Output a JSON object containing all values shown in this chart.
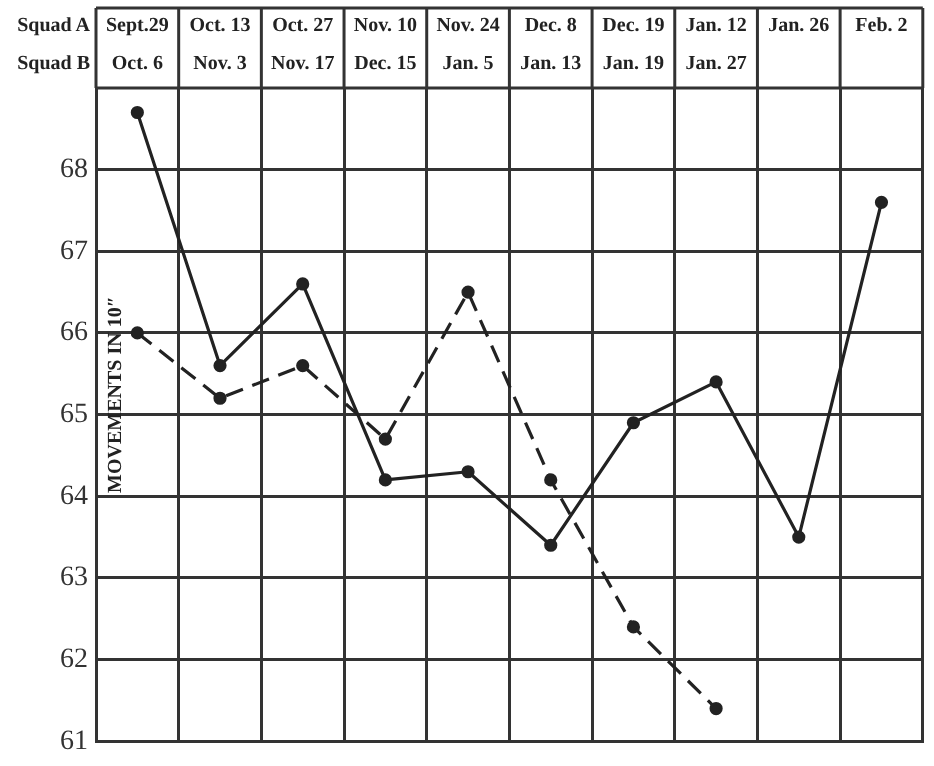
{
  "chart_data": {
    "type": "line",
    "ylabel": "MOVEMENTS IN 10″",
    "categories": [
      "Sept.29",
      "Oct. 13",
      "Oct. 27",
      "Nov. 10",
      "Nov. 24",
      "Dec. 8",
      "Dec. 19",
      "Jan. 12",
      "Jan. 26",
      "Feb. 2"
    ],
    "series": [
      {
        "color": "#222222",
        "line_style": "solid",
        "values": [
          68.7,
          65.6,
          66.6,
          64.2,
          64.3,
          63.4,
          64.9,
          65.4,
          63.5,
          67.6
        ]
      },
      {
        "color": "#222222",
        "line_style": "dashed",
        "values": [
          66.0,
          65.2,
          65.6,
          64.7,
          66.5,
          64.2,
          62.4,
          61.4,
          null,
          null
        ]
      }
    ],
    "annotations": [
      "Squad A",
      "Squad B",
      "Oct. 6",
      "Nov. 3",
      "Nov. 17",
      "Dec. 15",
      "Jan. 5",
      "Jan. 13",
      "Jan. 19",
      "Jan. 27"
    ],
    "ylim": [
      61,
      69
    ],
    "yticks": [
      61,
      62,
      63,
      64,
      65,
      66,
      67,
      68
    ],
    "grid": true,
    "legend": false,
    "marker": "circle"
  }
}
